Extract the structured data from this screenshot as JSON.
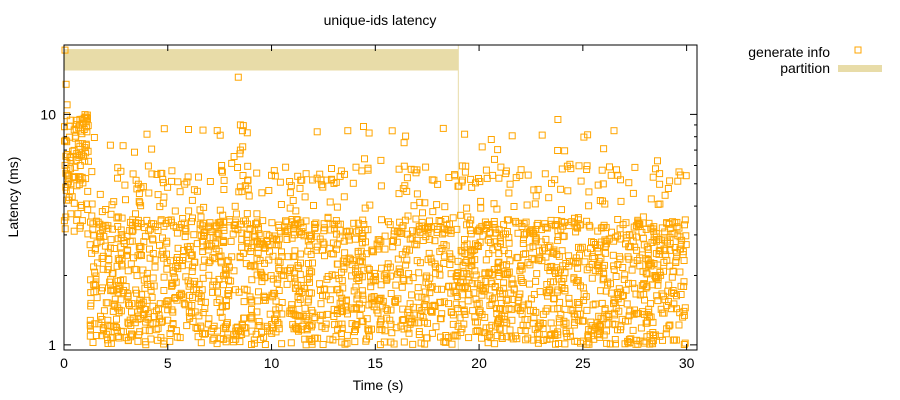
{
  "chart_data": {
    "type": "scatter",
    "title": "unique-ids latency",
    "xlabel": "Time (s)",
    "ylabel": "Latency (ms)",
    "xlim": [
      0,
      30.5
    ],
    "ylim": [
      0.95,
      20
    ],
    "yscale": "log",
    "grid": false,
    "legend_position": "top-right outside plot",
    "x_ticks": [
      0,
      5,
      10,
      15,
      20,
      25,
      30
    ],
    "y_major_ticks": [
      1,
      10
    ],
    "y_minor_ticks": [
      2,
      3,
      4,
      5,
      6,
      7,
      8,
      9
    ],
    "series": [
      {
        "name": "generate info",
        "kind": "points",
        "marker": "open-square",
        "color": "#ffa500",
        "x_range": [
          0,
          30
        ],
        "typical_range_ms": [
          1,
          3.5
        ],
        "max_ms": 19
      },
      {
        "name": "partition",
        "kind": "band",
        "color": "#e8dca8",
        "x": [
          0,
          19
        ],
        "y": [
          15.5,
          19.2
        ]
      }
    ]
  }
}
